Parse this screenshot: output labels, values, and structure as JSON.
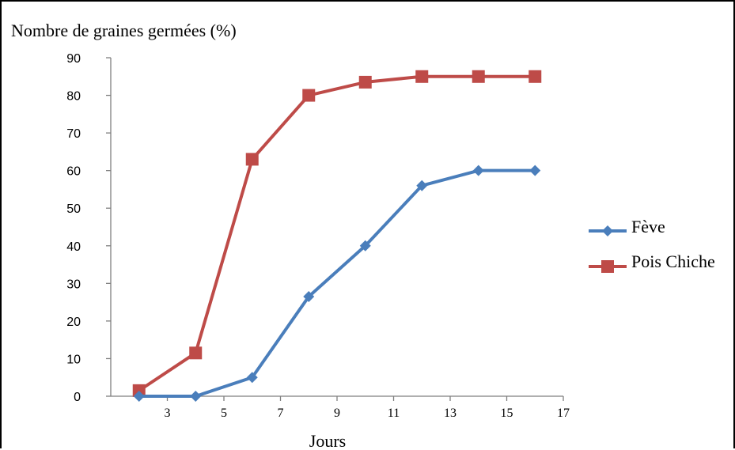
{
  "chart_data": {
    "type": "line",
    "title": "",
    "ylabel": "Nombre de graines germées (%)",
    "xlabel": "Jours",
    "x": [
      2,
      4,
      6,
      8,
      10,
      12,
      14,
      16
    ],
    "xlim": [
      1,
      17
    ],
    "ylim": [
      0,
      90
    ],
    "xticks": [
      3,
      5,
      7,
      9,
      11,
      13,
      15,
      17
    ],
    "yticks": [
      0,
      10,
      20,
      30,
      40,
      50,
      60,
      70,
      80,
      90
    ],
    "grid": false,
    "legend": "right",
    "series": [
      {
        "name": "Fève",
        "color": "#4a7ebb",
        "marker": "diamond",
        "values": [
          0,
          0,
          5,
          26.5,
          40,
          56,
          60,
          60
        ]
      },
      {
        "name": "Pois Chiche",
        "color": "#be4b48",
        "marker": "square",
        "values": [
          1.5,
          11.5,
          63,
          80,
          83.5,
          85,
          85,
          85
        ]
      }
    ]
  }
}
